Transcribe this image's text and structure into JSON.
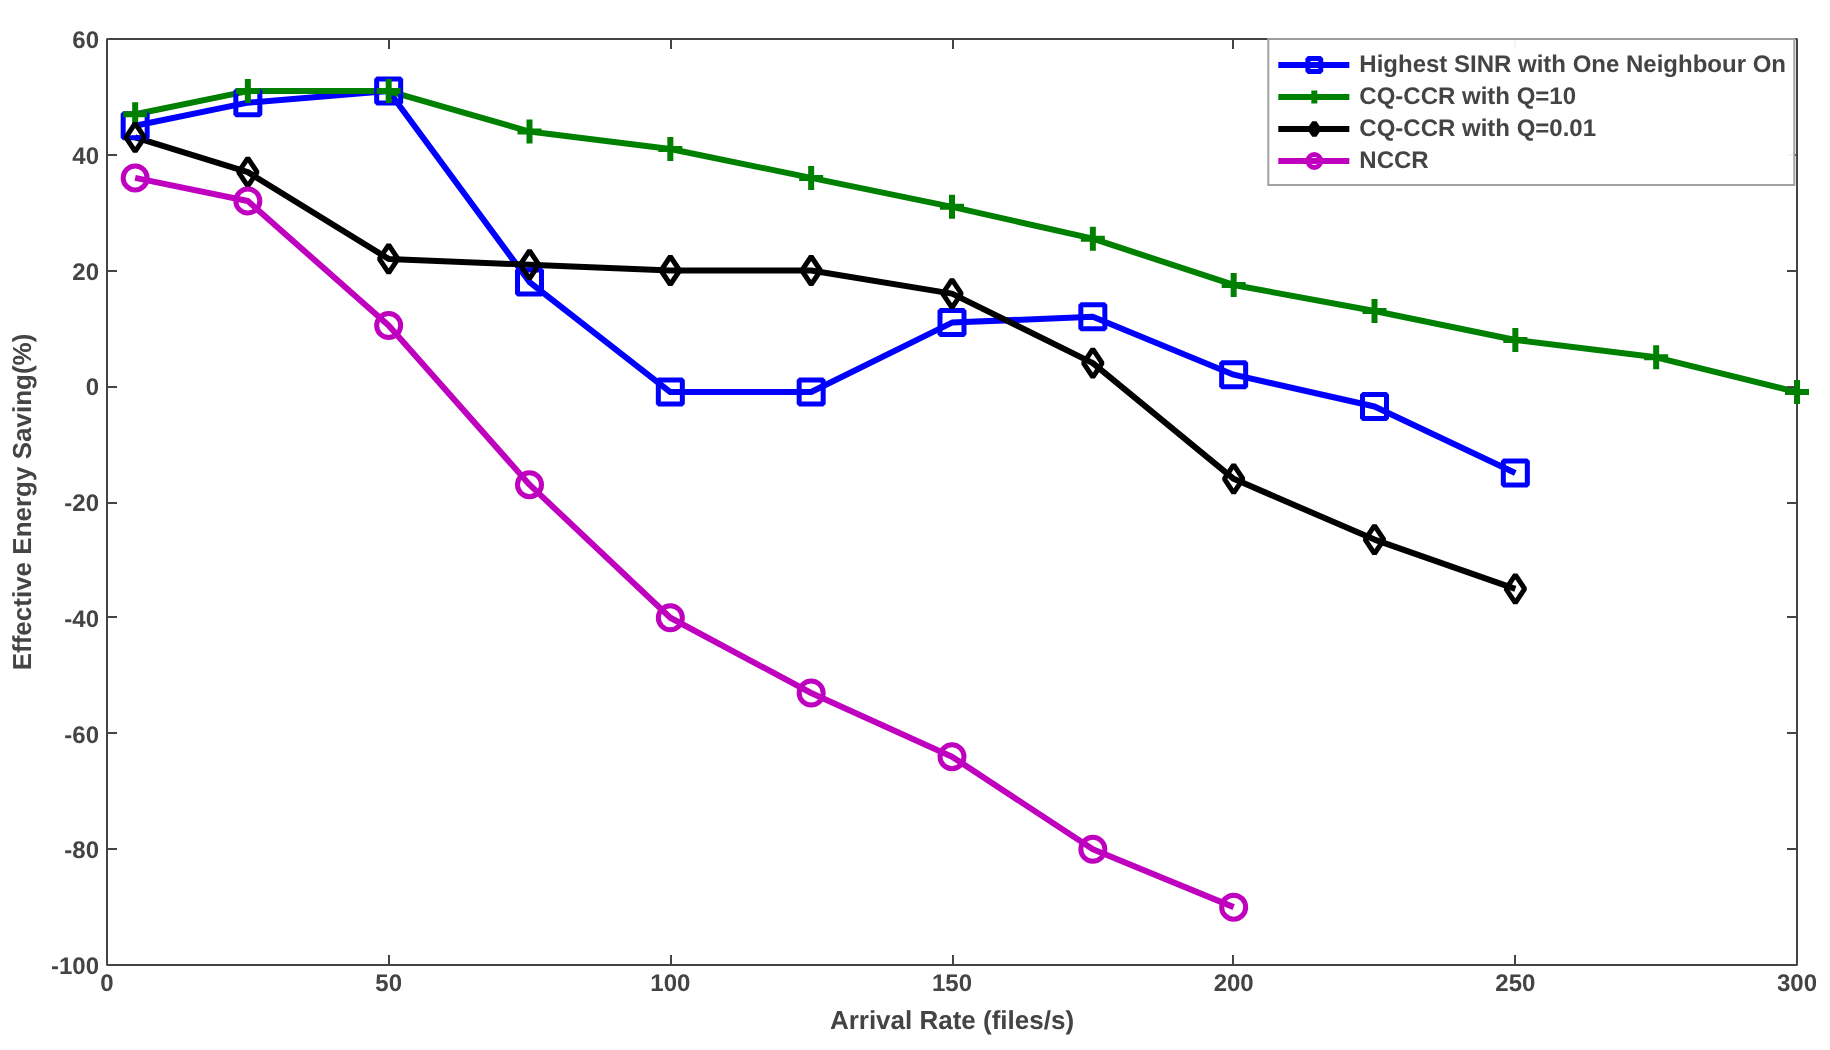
{
  "chart_data": {
    "type": "line",
    "xlabel": "Arrival Rate (files/s)",
    "ylabel": "Effective Energy Saving(%)",
    "xlim": [
      0,
      300
    ],
    "xticks": [
      0,
      50,
      100,
      150,
      200,
      250,
      300
    ],
    "ylim": [
      -100,
      60
    ],
    "yticks": [
      -100,
      -80,
      -60,
      -40,
      -20,
      0,
      20,
      40,
      60
    ],
    "grid": false,
    "legend": "top right",
    "line_style": "solid",
    "series": [
      {
        "name": "Highest SINR with One Neighbour On",
        "color": "#0000ff",
        "marker": "square",
        "x": [
          5,
          25,
          50,
          75,
          100,
          125,
          150,
          175,
          200,
          225,
          250
        ],
        "values": [
          45,
          49,
          51,
          18,
          -1,
          -1,
          11,
          12,
          2,
          -3.5,
          -15
        ]
      },
      {
        "name": "CQ-CCR with Q=10",
        "color": "#008000",
        "marker": "cross",
        "x": [
          5,
          25,
          50,
          75,
          100,
          125,
          150,
          175,
          200,
          225,
          250,
          275,
          300
        ],
        "values": [
          47,
          51,
          51,
          44,
          41,
          36,
          31,
          25.5,
          17.5,
          13,
          8,
          5,
          -1
        ]
      },
      {
        "name": "CQ-CCR with Q=0.01",
        "color": "#000000",
        "marker": "diamond",
        "x": [
          5,
          25,
          50,
          75,
          100,
          125,
          150,
          175,
          200,
          225,
          250
        ],
        "values": [
          43,
          37,
          22,
          21,
          20,
          20,
          16,
          4,
          -16,
          -26.5,
          -35
        ]
      },
      {
        "name": "NCCR",
        "color": "#bf00bf",
        "marker": "circle",
        "x": [
          5,
          25,
          50,
          75,
          100,
          125,
          150,
          175,
          200
        ],
        "values": [
          36,
          32,
          10.5,
          -17,
          -40,
          -53,
          -64,
          -80,
          -90
        ]
      }
    ]
  }
}
